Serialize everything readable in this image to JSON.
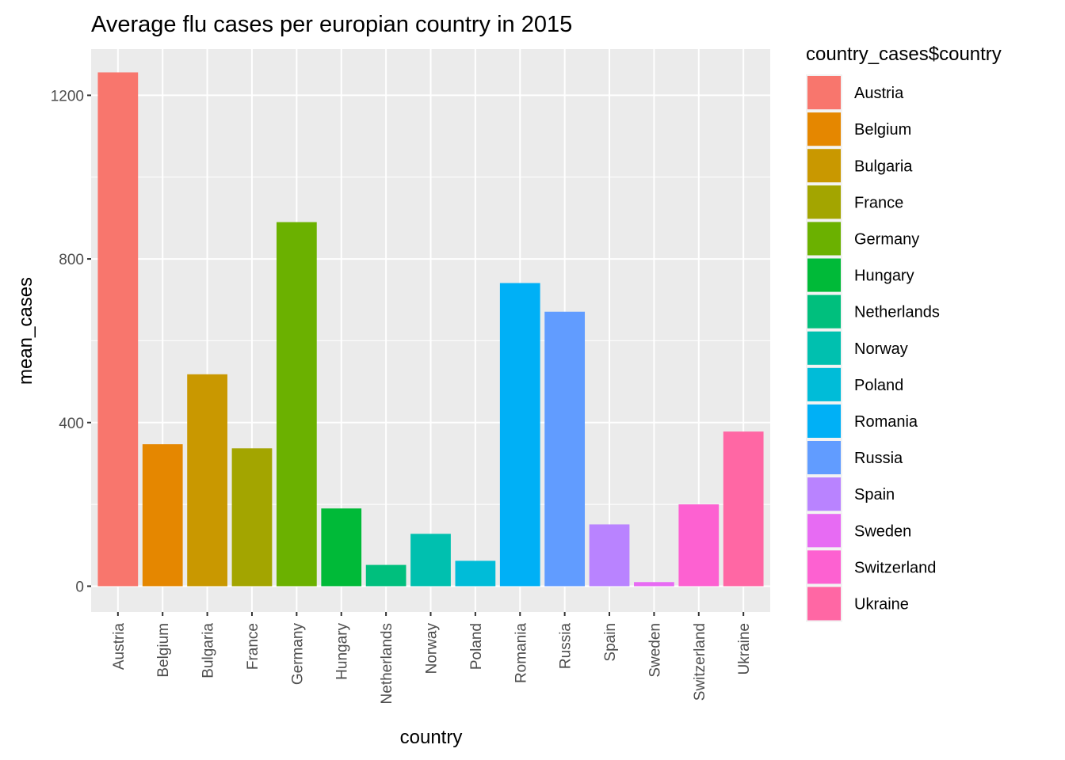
{
  "chart_data": {
    "type": "bar",
    "title": "Average flu cases per europian country in 2015",
    "xlabel": "country",
    "ylabel": "mean_cases",
    "ylim": [
      -63,
      1313
    ],
    "yticks": [
      0,
      400,
      800,
      1200
    ],
    "y_minor_ticks": [
      200,
      600,
      1000
    ],
    "grid": true,
    "legend": {
      "title": "country_cases$country",
      "position": "right"
    },
    "categories": [
      "Austria",
      "Belgium",
      "Bulgaria",
      "France",
      "Germany",
      "Hungary",
      "Netherlands",
      "Norway",
      "Poland",
      "Romania",
      "Russia",
      "Spain",
      "Sweden",
      "Switzerland",
      "Ukraine"
    ],
    "values": [
      1256,
      347,
      518,
      337,
      890,
      190,
      52,
      128,
      62,
      741,
      671,
      151,
      10,
      200,
      378
    ],
    "colors": [
      "#F8766D",
      "#E58700",
      "#C99800",
      "#A3A500",
      "#6BB100",
      "#00BA38",
      "#00BF7D",
      "#00C0AF",
      "#00BCD8",
      "#00B0F6",
      "#619CFF",
      "#B983FF",
      "#E76BF3",
      "#FD61D1",
      "#FF67A4"
    ]
  }
}
